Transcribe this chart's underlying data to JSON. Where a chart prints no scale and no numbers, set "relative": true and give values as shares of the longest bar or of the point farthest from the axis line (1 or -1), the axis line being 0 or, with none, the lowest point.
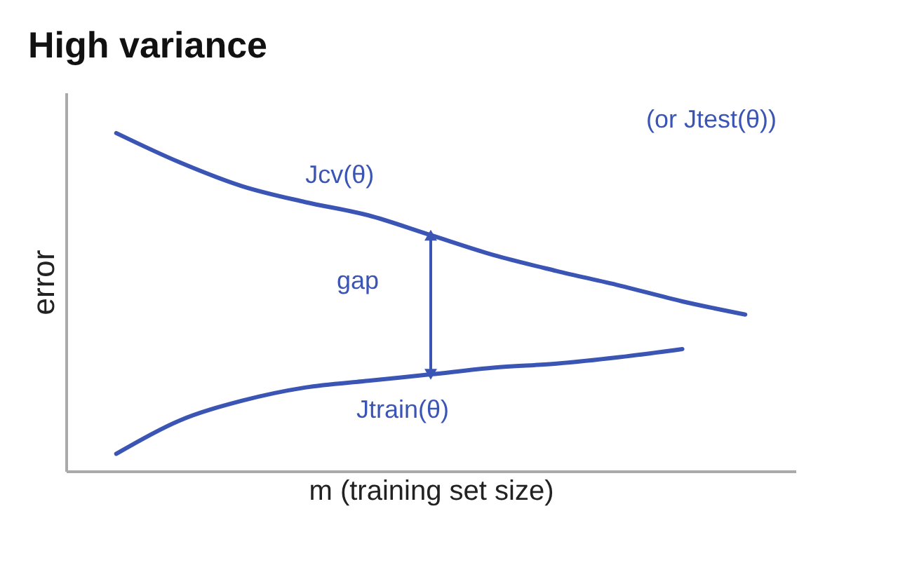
{
  "chart_data": {
    "type": "line",
    "title": "High variance",
    "xlabel": "m (training set size)",
    "ylabel": "error",
    "relative": true,
    "grid": false,
    "line_style": "solid",
    "categories": [
      null,
      null,
      null,
      null,
      null,
      null,
      null,
      null,
      null,
      null,
      null
    ],
    "series": [
      {
        "name": "Jcv(θ)",
        "color": "#3b55b5",
        "values": [
          1,
          0.914,
          0.843,
          0.796,
          0.757,
          0.698,
          0.639,
          0.592,
          0.549,
          0.502,
          0.463
        ]
      },
      {
        "name": "Jtrain(θ)",
        "color": "#3b55b5",
        "values": [
          0.051,
          0.149,
          0.208,
          0.247,
          0.267,
          0.286,
          0.306,
          0.318,
          0.337,
          0.361,
          null
        ]
      }
    ],
    "annotations": [
      "(or Jtest(θ))",
      "gap"
    ]
  }
}
